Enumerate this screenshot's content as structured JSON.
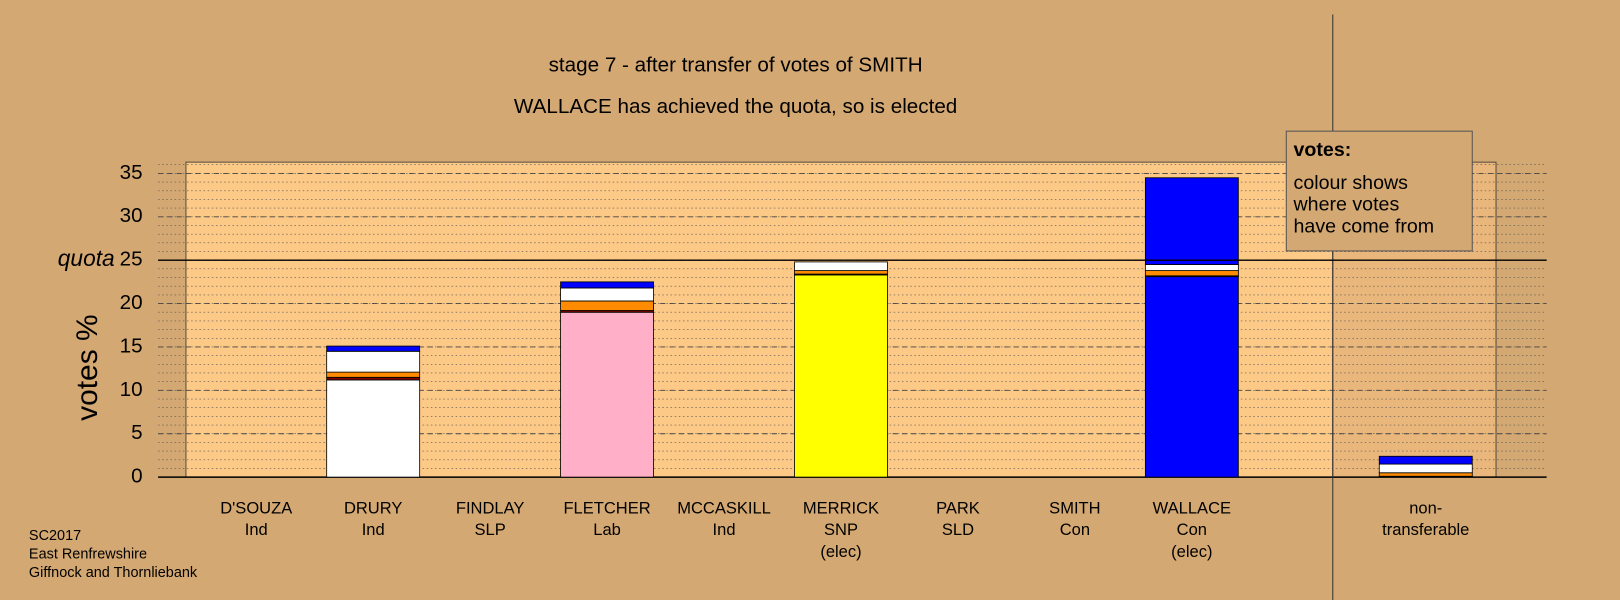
{
  "chart_data": {
    "type": "stacked_bar",
    "title": "stage 7 - after transfer of votes of SMITH",
    "subtitle": "WALLACE has achieved the quota, so is elected",
    "y_label": "votes %",
    "categories": [
      [
        "D'SOUZA",
        "Ind"
      ],
      [
        "DRURY",
        "Ind"
      ],
      [
        "FINDLAY",
        "SLP"
      ],
      [
        "FLETCHER",
        "Lab"
      ],
      [
        "MCCASKILL",
        "Ind"
      ],
      [
        "MERRICK",
        "SNP",
        "(elec)"
      ],
      [
        "PARK",
        "SLD"
      ],
      [
        "SMITH",
        "Con"
      ],
      [
        "WALLACE",
        "Con",
        "(elec)"
      ],
      [
        "non-",
        "transferable"
      ]
    ],
    "series": [
      {
        "color": "#ffffff",
        "values": [
          0,
          11.2,
          0,
          0,
          0,
          0,
          0,
          0,
          0,
          0
        ]
      },
      {
        "color": "#ffb0c8",
        "values": [
          0,
          0,
          0,
          19.0,
          0,
          0,
          0,
          0,
          0,
          0
        ]
      },
      {
        "color": "#ffff00",
        "values": [
          0,
          0,
          0,
          0,
          0,
          23.3,
          0,
          0,
          0,
          0
        ]
      },
      {
        "color": "#0000ff",
        "values": [
          0,
          0,
          0,
          0,
          0,
          0,
          0,
          0,
          23.1,
          0
        ]
      },
      {
        "color": "#800000",
        "values": [
          0,
          0.3,
          0,
          0.2,
          0,
          0.1,
          0,
          0,
          0.1,
          0.1
        ]
      },
      {
        "color": "#ff8c00",
        "values": [
          0,
          0.6,
          0,
          1.1,
          0,
          0.4,
          0,
          0,
          0.6,
          0.4
        ]
      },
      {
        "color": "#ffffff",
        "values": [
          0,
          2.4,
          0,
          1.5,
          0,
          1.0,
          0,
          0,
          0.7,
          1.0
        ]
      },
      {
        "color": "#0000ff",
        "values": [
          0,
          0.6,
          0,
          0.7,
          0,
          0,
          0,
          0,
          10.0,
          0.9
        ]
      }
    ],
    "ylim": [
      0,
      36.3
    ],
    "yticks": [
      0,
      5,
      10,
      15,
      20,
      25,
      30,
      35
    ],
    "grid": true,
    "quota": {
      "value": 25,
      "label": "quota"
    },
    "note": {
      "title": "votes:",
      "lines": [
        "colour shows",
        "where votes",
        "have come from"
      ]
    },
    "footer": [
      "SC2017",
      "East Renfrewshire",
      "Giffnock and Thornliebank"
    ]
  }
}
